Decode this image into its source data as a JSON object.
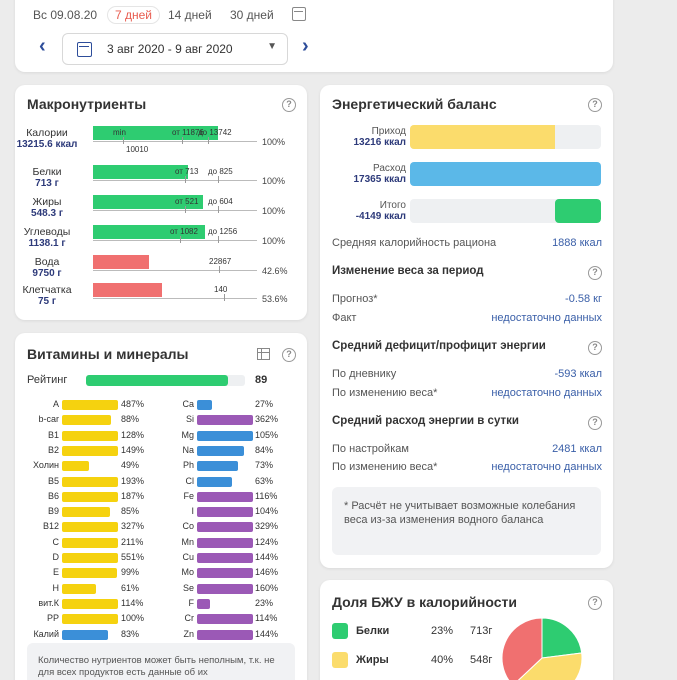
{
  "header": {
    "date": "Вс 09.08.20",
    "periods": [
      "7 дней",
      "14 дней",
      "30 дней"
    ],
    "range": "3 авг 2020 - 9 авг 2020",
    "prev": "‹",
    "next": "›"
  },
  "macros": {
    "title": "Макронутриенты",
    "rows": [
      {
        "name": "Калории",
        "value": "13215.6 ккал",
        "fill": 0.76,
        "color": "#2ecc71",
        "labels": [
          "min",
          "от 11876",
          "до 13742",
          "10010"
        ],
        "pct": "100%"
      },
      {
        "name": "Белки",
        "value": "713 г",
        "fill": 0.58,
        "color": "#2ecc71",
        "labels": [
          "от 713",
          "до 825"
        ],
        "pct": "100%"
      },
      {
        "name": "Жиры",
        "value": "548.3 г",
        "fill": 0.67,
        "color": "#2ecc71",
        "labels": [
          "от 521",
          "до 604"
        ],
        "pct": "100%"
      },
      {
        "name": "Углеводы",
        "value": "1138.1 г",
        "fill": 0.68,
        "color": "#2ecc71",
        "labels": [
          "от 1082",
          "до 1256"
        ],
        "pct": "100%"
      },
      {
        "name": "Вода",
        "value": "9750 г",
        "fill": 0.34,
        "color": "#f07070",
        "labels": [
          "22867"
        ],
        "pct": "42.6%"
      },
      {
        "name": "Клетчатка",
        "value": "75 г",
        "fill": 0.42,
        "color": "#f07070",
        "labels": [
          "140"
        ],
        "pct": "53.6%"
      }
    ]
  },
  "energy": {
    "title": "Энергетический баланс",
    "income_label": "Приход",
    "income_value": "13216 ккал",
    "expense_label": "Расход",
    "expense_value": "17365 ккал",
    "total_label": "Итого",
    "total_value": "-4149 ккал",
    "income_fill": 0.76,
    "expense_fill": 1.0,
    "total_fill": 0.24,
    "avg_label": "Средняя калорийность рациона",
    "avg_value": "1888 ккал",
    "weight_title": "Изменение веса за период",
    "forecast_label": "Прогноз*",
    "forecast_value": "-0.58 кг",
    "fact_label": "Факт",
    "fact_value": "недостаточно данных",
    "deficit_title": "Средний дефицит/профицит энергии",
    "diary_label": "По дневнику",
    "diary_value": "-593 ккал",
    "byweight_label": "По изменению веса*",
    "byweight_value": "недостаточно данных",
    "expend_title": "Средний расход энергии в сутки",
    "settings_label": "По настройкам",
    "settings_value": "2481 ккал",
    "byweight2_label": "По изменению веса*",
    "byweight2_value": "недостаточно данных",
    "note": "* Расчёт не учитывает возможные колебания веса из-за изменения водного баланса"
  },
  "vitamins": {
    "title": "Витамины и минералы",
    "rating_label": "Рейтинг",
    "rating_value": "89",
    "rating_fill": 0.89,
    "left": [
      {
        "n": "A",
        "p": "487%",
        "f": 1.0,
        "c": "#f5d20f"
      },
      {
        "n": "b-car",
        "p": "88%",
        "f": 0.88,
        "c": "#f5d20f"
      },
      {
        "n": "B1",
        "p": "128%",
        "f": 1.0,
        "c": "#f5d20f"
      },
      {
        "n": "B2",
        "p": "149%",
        "f": 1.0,
        "c": "#f5d20f"
      },
      {
        "n": "Холин",
        "p": "49%",
        "f": 0.49,
        "c": "#f5d20f"
      },
      {
        "n": "B5",
        "p": "193%",
        "f": 1.0,
        "c": "#f5d20f"
      },
      {
        "n": "B6",
        "p": "187%",
        "f": 1.0,
        "c": "#f5d20f"
      },
      {
        "n": "B9",
        "p": "85%",
        "f": 0.85,
        "c": "#f5d20f"
      },
      {
        "n": "B12",
        "p": "327%",
        "f": 1.0,
        "c": "#f5d20f"
      },
      {
        "n": "C",
        "p": "211%",
        "f": 1.0,
        "c": "#f5d20f"
      },
      {
        "n": "D",
        "p": "551%",
        "f": 1.0,
        "c": "#f5d20f"
      },
      {
        "n": "E",
        "p": "99%",
        "f": 0.99,
        "c": "#f5d20f"
      },
      {
        "n": "H",
        "p": "61%",
        "f": 0.61,
        "c": "#f5d20f"
      },
      {
        "n": "вит.К",
        "p": "114%",
        "f": 1.0,
        "c": "#f5d20f"
      },
      {
        "n": "PP",
        "p": "100%",
        "f": 1.0,
        "c": "#f5d20f"
      },
      {
        "n": "Калий",
        "p": "83%",
        "f": 0.83,
        "c": "#3b8fd8"
      }
    ],
    "right": [
      {
        "n": "Ca",
        "p": "27%",
        "f": 0.27,
        "c": "#3b8fd8"
      },
      {
        "n": "Si",
        "p": "362%",
        "f": 1.0,
        "c": "#9b59b6"
      },
      {
        "n": "Mg",
        "p": "105%",
        "f": 1.0,
        "c": "#3b8fd8"
      },
      {
        "n": "Na",
        "p": "84%",
        "f": 0.84,
        "c": "#3b8fd8"
      },
      {
        "n": "Ph",
        "p": "73%",
        "f": 0.73,
        "c": "#3b8fd8"
      },
      {
        "n": "Cl",
        "p": "63%",
        "f": 0.63,
        "c": "#3b8fd8"
      },
      {
        "n": "Fe",
        "p": "116%",
        "f": 1.0,
        "c": "#9b59b6"
      },
      {
        "n": "I",
        "p": "104%",
        "f": 1.0,
        "c": "#9b59b6"
      },
      {
        "n": "Co",
        "p": "329%",
        "f": 1.0,
        "c": "#9b59b6"
      },
      {
        "n": "Mn",
        "p": "124%",
        "f": 1.0,
        "c": "#9b59b6"
      },
      {
        "n": "Cu",
        "p": "144%",
        "f": 1.0,
        "c": "#9b59b6"
      },
      {
        "n": "Mo",
        "p": "146%",
        "f": 1.0,
        "c": "#9b59b6"
      },
      {
        "n": "Se",
        "p": "160%",
        "f": 1.0,
        "c": "#9b59b6"
      },
      {
        "n": "F",
        "p": "23%",
        "f": 0.23,
        "c": "#9b59b6"
      },
      {
        "n": "Cr",
        "p": "114%",
        "f": 1.0,
        "c": "#9b59b6"
      },
      {
        "n": "Zn",
        "p": "144%",
        "f": 1.0,
        "c": "#9b59b6"
      }
    ],
    "note": "Количество нутриентов может быть неполным, т.к. не для всех продуктов есть данные об их"
  },
  "bju": {
    "title": "Доля БЖУ в калорийности",
    "rows": [
      {
        "name": "Белки",
        "pct": "23%",
        "grams": "713г",
        "color": "#2ecc71"
      },
      {
        "name": "Жиры",
        "pct": "40%",
        "grams": "548г",
        "color": "#fbdc6c"
      }
    ],
    "pie": [
      {
        "value": 23,
        "color": "#2ecc71"
      },
      {
        "value": 40,
        "color": "#fbdc6c"
      },
      {
        "value": 37,
        "color": "#f07070"
      }
    ]
  }
}
